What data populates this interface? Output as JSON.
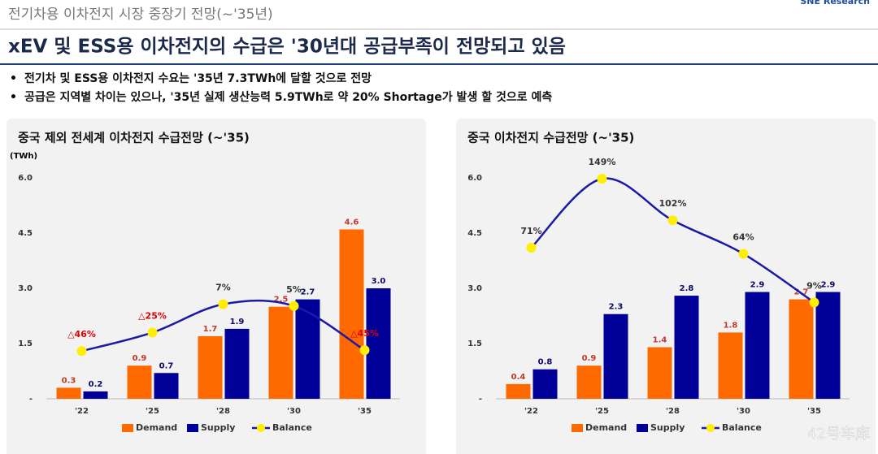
{
  "header": {
    "breadcrumb": "전기차용 이차전지 시장 중장기 전망(~'35년)",
    "logo": "SNE Research"
  },
  "title": "xEV 및 ESS용 이차전지의 수급은 '30년대 공급부족이 전망되고 있음",
  "bullets": [
    "전기차 및 ESS용 이차전지 수요는 '35년 7.3TWh에 달할 것으로 전망",
    "공급은 지역별 차이는 있으나, '35년 실제 생산능력 5.9TWh로 약 20% Shortage가 발생 할 것으로 예측"
  ],
  "watermark": "42号车库",
  "chart_data": [
    {
      "type": "bar",
      "title": "중국 제외 전세계 이차전지 수급전망 (~'35)",
      "y_label": "(TWh)",
      "categories": [
        "'22",
        "'25",
        "'28",
        "'30",
        "'35"
      ],
      "ylim": [
        0,
        6
      ],
      "yticks": [
        {
          "value": 0,
          "label": "-"
        },
        1.5,
        {
          "value": 3,
          "label": "3.0"
        },
        4.5,
        {
          "value": 6,
          "label": "6.0"
        }
      ],
      "y2lim": [
        -100,
        150
      ],
      "series": [
        {
          "name": "Demand",
          "color": "#ff6a00",
          "values": [
            0.3,
            0.9,
            1.7,
            2.5,
            4.6
          ],
          "value_labels": [
            "0.3",
            "0.9",
            "1.7",
            "2.5",
            "4.6"
          ]
        },
        {
          "name": "Supply",
          "color": "#000099",
          "values": [
            0.2,
            0.7,
            1.9,
            2.7,
            3
          ],
          "value_labels": [
            "0.2",
            "0.7",
            "1.9",
            "2.7",
            "3.0"
          ]
        },
        {
          "name": "Balance",
          "type": "line",
          "axis": "y2",
          "color": "#1a1aa6",
          "marker_color": "#ffee00",
          "values": [
            -46,
            -25,
            7,
            5,
            -45
          ],
          "value_labels": [
            "△46%",
            "△25%",
            "7%",
            "5%",
            "△45%"
          ]
        }
      ]
    },
    {
      "type": "bar",
      "title": "중국 이차전지 수급전망 (~'35)",
      "categories": [
        "'22",
        "'25",
        "'28",
        "'30",
        "'35"
      ],
      "ylim": [
        0,
        6
      ],
      "yticks": [
        {
          "value": 0,
          "label": "-"
        },
        1.5,
        {
          "value": 3,
          "label": "3.0"
        },
        4.5,
        {
          "value": 6,
          "label": "6.0"
        }
      ],
      "y2lim": [
        -100,
        150
      ],
      "series": [
        {
          "name": "Demand",
          "color": "#ff6a00",
          "values": [
            0.4,
            0.9,
            1.4,
            1.8,
            2.7
          ],
          "value_labels": [
            "0.4",
            "0.9",
            "1.4",
            "1.8",
            "2.7"
          ]
        },
        {
          "name": "Supply",
          "color": "#000099",
          "values": [
            0.8,
            2.3,
            2.8,
            2.9,
            2.9
          ],
          "value_labels": [
            "0.8",
            "2.3",
            "2.8",
            "2.9",
            "2.9"
          ]
        },
        {
          "name": "Balance",
          "type": "line",
          "axis": "y2",
          "color": "#1a1aa6",
          "marker_color": "#ffee00",
          "values": [
            71,
            149,
            102,
            64,
            9
          ],
          "value_labels": [
            "71%",
            "149%",
            "102%",
            "64%",
            "9%"
          ]
        }
      ]
    }
  ]
}
